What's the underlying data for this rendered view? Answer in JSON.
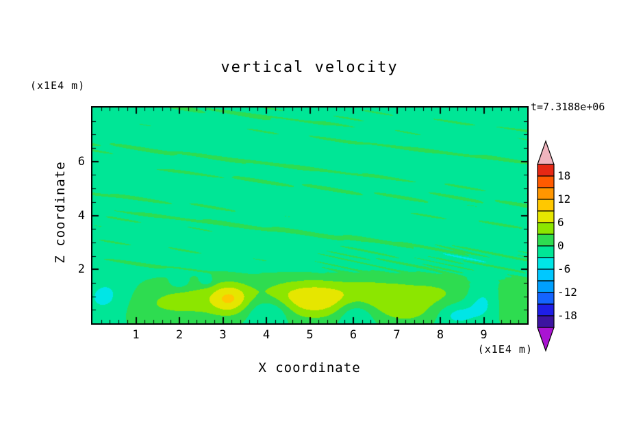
{
  "title": "vertical velocity",
  "timestamp": "t=7.3188e+06",
  "axes": {
    "x_label": "X coordinate",
    "x_unit": "(x1E4 m)",
    "y_label": "Z coordinate",
    "y_unit": "(x1E4 m)",
    "x_ticks": [
      1,
      2,
      3,
      4,
      5,
      6,
      7,
      8,
      9
    ],
    "y_ticks": [
      2,
      4,
      6
    ]
  },
  "chart_data": {
    "type": "heatmap",
    "title": "vertical velocity",
    "xlabel": "X coordinate (x1E4 m)",
    "ylabel": "Z coordinate (x1E4 m)",
    "time_annotation": "t=7.3188e+06",
    "x_range": [
      0,
      10
    ],
    "z_range": [
      0,
      8
    ],
    "x_major_tick_step": 1,
    "x_minor_tick_step": 0.2,
    "y_major_tick_step": 2,
    "y_minor_tick_step": 0.5,
    "grid": false,
    "legend_position": "right-colorbar",
    "levels": {
      "min": -21,
      "max": 21,
      "step": 3
    },
    "colorbar_labels": [
      "18",
      "12",
      "6",
      "0",
      "-6",
      "-12",
      "-18"
    ],
    "palette_low_to_high": [
      "#3C14A0",
      "#1E1EE6",
      "#1464FF",
      "#00A0FF",
      "#00C8FF",
      "#00E6E6",
      "#00E696",
      "#2EDC50",
      "#8CE600",
      "#E6E600",
      "#FFC800",
      "#FF9600",
      "#FF5A00",
      "#E62814"
    ],
    "colorbar_arrow_low_color": "#AA14D2",
    "colorbar_arrow_high_color": "#F0B4BE",
    "frame_color": "#000000",
    "background_color": "#FFFFFF",
    "field": {
      "background_upper": -1.0,
      "background_lower": -0.55,
      "base_blend_z": [
        1.5,
        2.2
      ],
      "blobs": [
        {
          "x": 5.05,
          "z": 0.85,
          "rx": 0.8,
          "rz": 0.5,
          "a": 8.2
        },
        {
          "x": 3.15,
          "z": 0.9,
          "rx": 0.32,
          "rz": 0.42,
          "a": 7.6
        },
        {
          "x": 2.35,
          "z": 0.75,
          "rx": 0.55,
          "rz": 0.45,
          "a": 3.2
        },
        {
          "x": 6.55,
          "z": 0.95,
          "rx": 0.55,
          "rz": 0.5,
          "a": 3.4
        },
        {
          "x": 1.15,
          "z": 0.6,
          "rx": 0.7,
          "rz": 0.5,
          "a": 2.6
        },
        {
          "x": 7.8,
          "z": 0.95,
          "rx": 0.65,
          "rz": 0.55,
          "a": 3.2
        },
        {
          "x": 9.55,
          "z": 0.7,
          "rx": 0.55,
          "rz": 0.55,
          "a": 3.0
        },
        {
          "x": 7.2,
          "z": 0.35,
          "rx": 0.4,
          "rz": 0.3,
          "a": 2.5
        },
        {
          "x": 4.8,
          "z": 1.15,
          "rx": 3.6,
          "rz": 0.4,
          "a": 1.5
        },
        {
          "x": 4.1,
          "z": 0.5,
          "rx": 0.36,
          "rz": 0.36,
          "a": -5.2
        },
        {
          "x": 6.05,
          "z": 0.45,
          "rx": 0.32,
          "rz": 0.4,
          "a": -5.0
        },
        {
          "x": 9.0,
          "z": 0.78,
          "rx": 0.3,
          "rz": 0.5,
          "a": -5.6
        },
        {
          "x": 8.35,
          "z": 0.35,
          "rx": 0.3,
          "rz": 0.32,
          "a": -4.2
        },
        {
          "x": 0.35,
          "z": 0.95,
          "rx": 0.45,
          "rz": 0.55,
          "a": -4.5
        },
        {
          "x": 2.0,
          "z": 1.5,
          "rx": 0.14,
          "rz": 0.14,
          "a": -3.6
        },
        {
          "x": 2.62,
          "z": 1.55,
          "rx": 0.11,
          "rz": 0.12,
          "a": -3.2
        }
      ],
      "streaks": {
        "env_z0": 1.7,
        "env_z1": 2.25,
        "terms": [
          {
            "a": 0.5,
            "fx": 0.3,
            "fz": 1.7,
            "p": 0.5
          },
          {
            "a": 0.45,
            "fx": 0.5,
            "fz": 2.5,
            "p": 2.1
          },
          {
            "a": 0.42,
            "fx": 0.16,
            "fz": 1.15,
            "p": 4.2
          },
          {
            "a": 0.32,
            "fx": 0.65,
            "fz": 3.3,
            "p": 1.3
          },
          {
            "a": 0.28,
            "fx": 0.95,
            "fz": 2.1,
            "p": 3.7
          },
          {
            "a": 0.22,
            "fx": 1.5,
            "fz": 4.4,
            "p": 0.9
          },
          {
            "a": 0.35,
            "fx": 0.1,
            "fz": 0.45,
            "p": 1.9
          }
        ]
      },
      "fine": {
        "a": 1.4,
        "zc": 2.45,
        "zs": 0.55,
        "x0": 4.2,
        "x1": 5.7,
        "s1": {
          "fx": 1.7,
          "fz": 5.2,
          "p": 0.7
        },
        "s2": {
          "fx": 0.55,
          "fz": 1.1,
          "p": 2.3
        }
      }
    }
  }
}
